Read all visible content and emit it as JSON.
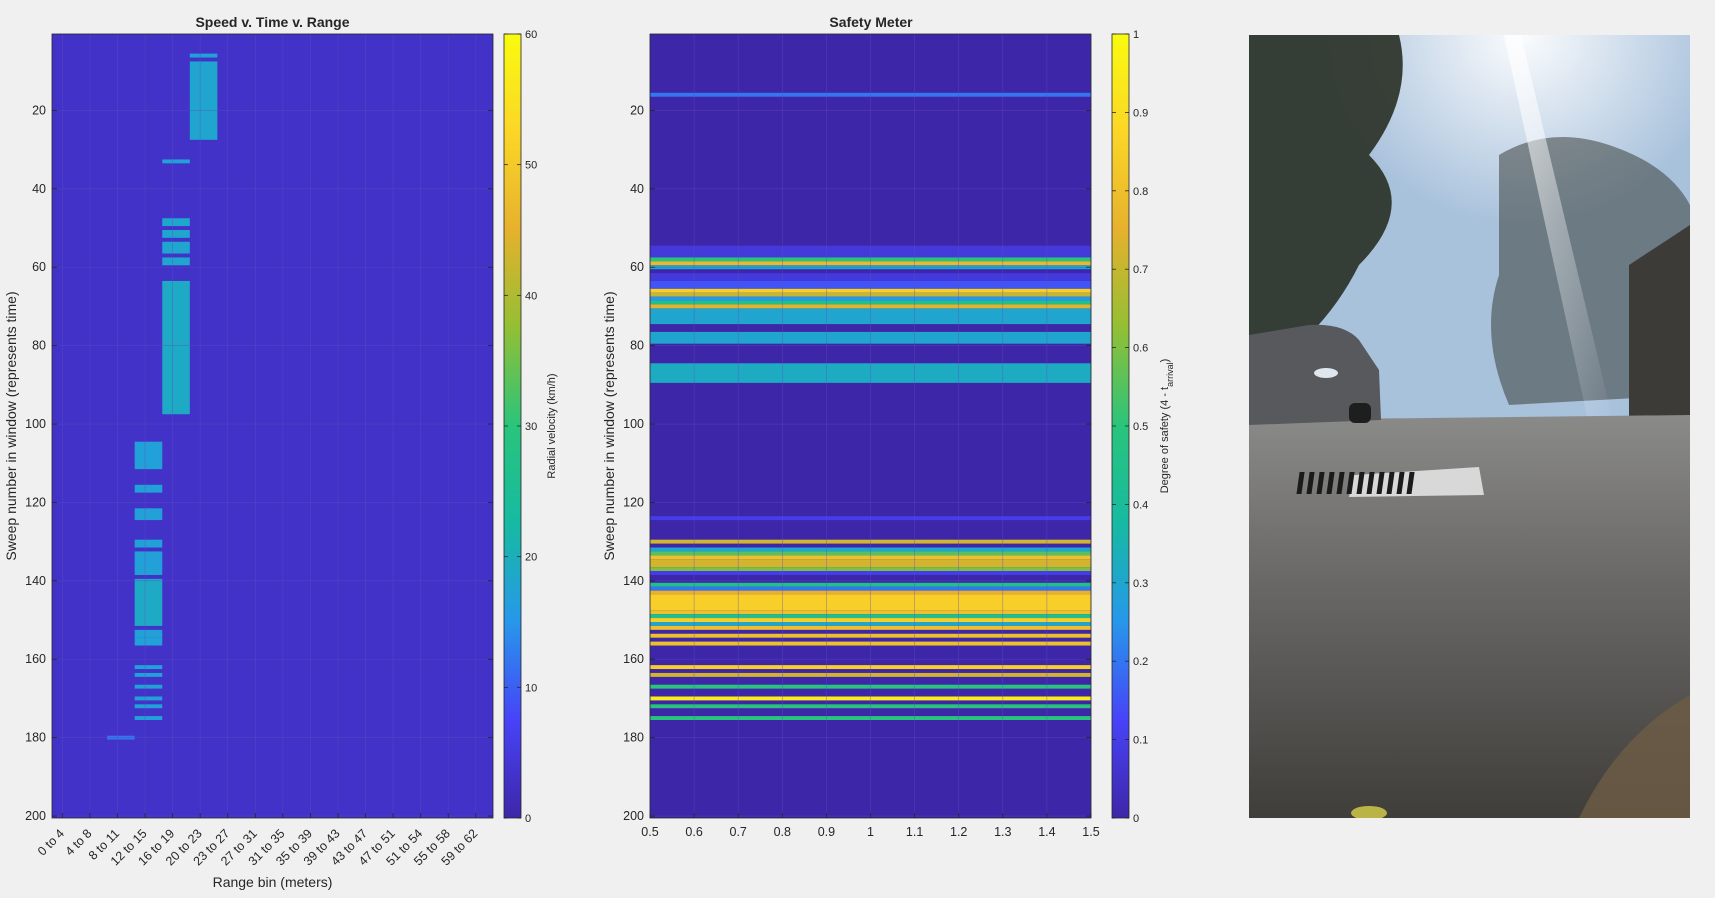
{
  "colors": {
    "cmap": [
      "#3e26a8",
      "#4743f8",
      "#2797eb",
      "#16baa2",
      "#29c47c",
      "#93bf34",
      "#e6b12d",
      "#fbd627",
      "#f9fb0e"
    ],
    "background": "#f0f0f0",
    "axes_edge": "#262626"
  },
  "chart_data": [
    {
      "type": "heatmap",
      "title": "Speed v. Time v. Range",
      "xlabel": "Range bin (meters)",
      "ylabel": "Sweep number in window (represents time)",
      "x_categories": [
        "0 to 4",
        "4 to 8",
        "8 to 11",
        "12 to 15",
        "16 to 19",
        "20 to 23",
        "23 to 27",
        "27 to 31",
        "31 to 35",
        "35 to 39",
        "39 to 43",
        "43 to 47",
        "47 to 51",
        "51 to 54",
        "55 to 58",
        "59 to 62"
      ],
      "x_bins": 64,
      "ylim": [
        0.5,
        200.5
      ],
      "yticks": [
        "20",
        "40",
        "60",
        "80",
        "100",
        "120",
        "140",
        "160",
        "180",
        "200"
      ],
      "yticks_values": [
        20,
        40,
        60,
        80,
        100,
        120,
        140,
        160,
        180,
        200
      ],
      "background_value": 3,
      "cells": [
        {
          "bins": [
            20,
            23
          ],
          "rows": [
            6,
            6
          ],
          "value": 17
        },
        {
          "bins": [
            20,
            23
          ],
          "rows": [
            8,
            27
          ],
          "value": 18
        },
        {
          "bins": [
            16,
            19
          ],
          "rows": [
            33,
            33
          ],
          "value": 17
        },
        {
          "bins": [
            16,
            19
          ],
          "rows": [
            48,
            49
          ],
          "value": 18
        },
        {
          "bins": [
            16,
            19
          ],
          "rows": [
            51,
            52
          ],
          "value": 18
        },
        {
          "bins": [
            16,
            19
          ],
          "rows": [
            54,
            56
          ],
          "value": 18
        },
        {
          "bins": [
            16,
            19
          ],
          "rows": [
            58,
            59
          ],
          "value": 18
        },
        {
          "bins": [
            16,
            19
          ],
          "rows": [
            64,
            97
          ],
          "value": 19
        },
        {
          "bins": [
            12,
            15
          ],
          "rows": [
            105,
            111
          ],
          "value": 17
        },
        {
          "bins": [
            12,
            15
          ],
          "rows": [
            116,
            117
          ],
          "value": 17
        },
        {
          "bins": [
            12,
            15
          ],
          "rows": [
            122,
            124
          ],
          "value": 17
        },
        {
          "bins": [
            12,
            15
          ],
          "rows": [
            130,
            131
          ],
          "value": 17
        },
        {
          "bins": [
            12,
            15
          ],
          "rows": [
            133,
            138
          ],
          "value": 17
        },
        {
          "bins": [
            12,
            15
          ],
          "rows": [
            140,
            151
          ],
          "value": 19
        },
        {
          "bins": [
            12,
            15
          ],
          "rows": [
            153,
            154
          ],
          "value": 17
        },
        {
          "bins": [
            12,
            15
          ],
          "rows": [
            155,
            156
          ],
          "value": 17
        },
        {
          "bins": [
            12,
            15
          ],
          "rows": [
            162,
            162
          ],
          "value": 17
        },
        {
          "bins": [
            12,
            15
          ],
          "rows": [
            164,
            164
          ],
          "value": 17
        },
        {
          "bins": [
            12,
            15
          ],
          "rows": [
            167,
            167
          ],
          "value": 17
        },
        {
          "bins": [
            12,
            15
          ],
          "rows": [
            170,
            170
          ],
          "value": 17
        },
        {
          "bins": [
            12,
            15
          ],
          "rows": [
            172,
            172
          ],
          "value": 17
        },
        {
          "bins": [
            12,
            15
          ],
          "rows": [
            175,
            175
          ],
          "value": 17
        },
        {
          "bins": [
            8,
            11
          ],
          "rows": [
            180,
            180
          ],
          "value": 12
        }
      ],
      "colorbar": {
        "label": "Radial velocity (km/h)",
        "range": [
          0,
          60
        ],
        "ticks": [
          "0",
          "10",
          "20",
          "30",
          "40",
          "50",
          "60"
        ],
        "ticks_values": [
          0,
          10,
          20,
          30,
          40,
          50,
          60
        ]
      }
    },
    {
      "type": "heatmap",
      "title": "Safety Meter",
      "ylabel": "Sweep number in window  (represents time)",
      "xlim": [
        0.5,
        1.5
      ],
      "xticks": [
        "0.5",
        "0.6",
        "0.7",
        "0.8",
        "0.9",
        "1",
        "1.1",
        "1.2",
        "1.3",
        "1.4",
        "1.5"
      ],
      "xticks_values": [
        0.5,
        0.6,
        0.7,
        0.8,
        0.9,
        1,
        1.1,
        1.2,
        1.3,
        1.4,
        1.5
      ],
      "ylim": [
        0.5,
        200.5
      ],
      "yticks": [
        "20",
        "40",
        "60",
        "80",
        "100",
        "120",
        "140",
        "160",
        "180",
        "200"
      ],
      "yticks_values": [
        20,
        40,
        60,
        80,
        100,
        120,
        140,
        160,
        180,
        200
      ],
      "background_value": 0,
      "rows": [
        {
          "rows": [
            16,
            16
          ],
          "value": 0.2
        },
        {
          "rows": [
            55,
            57
          ],
          "value": 0.08
        },
        {
          "rows": [
            58,
            58
          ],
          "value": 0.5
        },
        {
          "rows": [
            59,
            59
          ],
          "value": 0.78
        },
        {
          "rows": [
            60,
            60
          ],
          "value": 0.3
        },
        {
          "rows": [
            62,
            63
          ],
          "value": 0.08
        },
        {
          "rows": [
            64,
            65
          ],
          "value": 0.15
        },
        {
          "rows": [
            66,
            66
          ],
          "value": 0.85
        },
        {
          "rows": [
            67,
            67
          ],
          "value": 0.7
        },
        {
          "rows": [
            68,
            68
          ],
          "value": 0.25
        },
        {
          "rows": [
            69,
            69
          ],
          "value": 0.45
        },
        {
          "rows": [
            70,
            70
          ],
          "value": 0.75
        },
        {
          "rows": [
            71,
            74
          ],
          "value": 0.3
        },
        {
          "rows": [
            77,
            79
          ],
          "value": 0.3
        },
        {
          "rows": [
            85,
            89
          ],
          "value": 0.32
        },
        {
          "rows": [
            124,
            124
          ],
          "value": 0.1
        },
        {
          "rows": [
            130,
            130
          ],
          "value": 0.72
        },
        {
          "rows": [
            132,
            132
          ],
          "value": 0.3
        },
        {
          "rows": [
            133,
            133
          ],
          "value": 0.55
        },
        {
          "rows": [
            134,
            134
          ],
          "value": 0.8
        },
        {
          "rows": [
            135,
            136
          ],
          "value": 0.72
        },
        {
          "rows": [
            137,
            137
          ],
          "value": 0.6
        },
        {
          "rows": [
            138,
            138
          ],
          "value": 0.1
        },
        {
          "rows": [
            141,
            141
          ],
          "value": 0.45
        },
        {
          "rows": [
            142,
            142
          ],
          "value": 0.2
        },
        {
          "rows": [
            143,
            143
          ],
          "value": 0.75
        },
        {
          "rows": [
            144,
            147
          ],
          "value": 0.85
        },
        {
          "rows": [
            148,
            148
          ],
          "value": 0.8
        },
        {
          "rows": [
            149,
            149
          ],
          "value": 0.45
        },
        {
          "rows": [
            150,
            150
          ],
          "value": 0.85
        },
        {
          "rows": [
            151,
            151
          ],
          "value": 0.3
        },
        {
          "rows": [
            152,
            152
          ],
          "value": 0.8
        },
        {
          "rows": [
            154,
            154
          ],
          "value": 0.8
        },
        {
          "rows": [
            156,
            156
          ],
          "value": 0.8
        },
        {
          "rows": [
            162,
            162
          ],
          "value": 0.85
        },
        {
          "rows": [
            164,
            164
          ],
          "value": 0.72
        },
        {
          "rows": [
            167,
            167
          ],
          "value": 0.5
        },
        {
          "rows": [
            170,
            170
          ],
          "value": 0.95
        },
        {
          "rows": [
            172,
            172
          ],
          "value": 0.5
        },
        {
          "rows": [
            175,
            175
          ],
          "value": 0.5
        }
      ],
      "colorbar": {
        "label_main": "Degree of safety (4 - t",
        "label_sub": "arrival",
        "label_end": ")",
        "range": [
          0,
          1
        ],
        "ticks": [
          "0",
          "0.1",
          "0.2",
          "0.3",
          "0.4",
          "0.5",
          "0.6",
          "0.7",
          "0.8",
          "0.9",
          "1"
        ],
        "ticks_values": [
          0,
          0.1,
          0.2,
          0.3,
          0.4,
          0.5,
          0.6,
          0.7,
          0.8,
          0.9,
          1
        ]
      }
    }
  ],
  "photo": {
    "subject": "street-scene-photo"
  }
}
